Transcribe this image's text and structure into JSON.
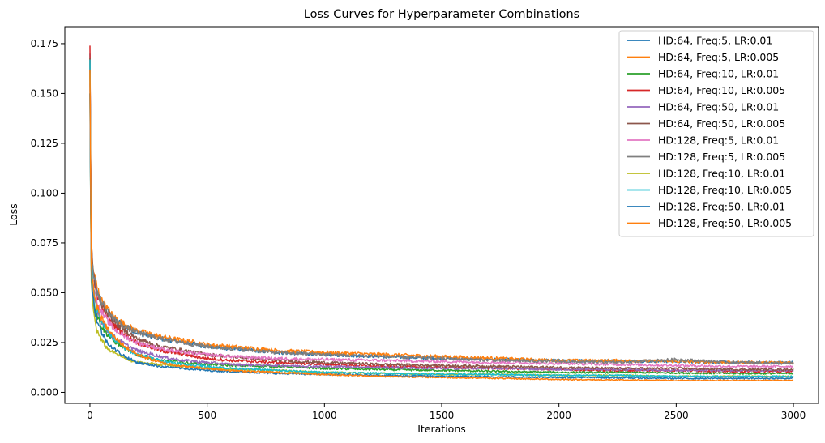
{
  "chart_data": {
    "type": "line",
    "title": "Loss Curves for Hyperparameter Combinations",
    "xlabel": "Iterations",
    "ylabel": "Loss",
    "xlim": [
      -107,
      3107
    ],
    "ylim": [
      -0.0055,
      0.1835
    ],
    "xticks": [
      0,
      500,
      1000,
      1500,
      2000,
      2500,
      3000
    ],
    "xtick_labels": [
      "0",
      "500",
      "1000",
      "1500",
      "2000",
      "2500",
      "3000"
    ],
    "yticks": [
      0.0,
      0.025,
      0.05,
      0.075,
      0.1,
      0.125,
      0.15,
      0.175
    ],
    "ytick_labels": [
      "0.000",
      "0.025",
      "0.050",
      "0.075",
      "0.100",
      "0.125",
      "0.150",
      "0.175"
    ],
    "grid": false,
    "legend_position": "top-right",
    "x": [
      0,
      5,
      10,
      20,
      30,
      50,
      75,
      100,
      150,
      200,
      300,
      400,
      500,
      600,
      800,
      1000,
      1250,
      1500,
      1750,
      2000,
      2250,
      2500,
      2750,
      3000
    ],
    "series": [
      {
        "name": "HD:64, Freq:5, LR:0.01",
        "color": "#1f77b4",
        "values": [
          0.17,
          0.075,
          0.062,
          0.055,
          0.05,
          0.045,
          0.04,
          0.037,
          0.033,
          0.03,
          0.027,
          0.025,
          0.023,
          0.022,
          0.02,
          0.019,
          0.018,
          0.017,
          0.0165,
          0.016,
          0.0158,
          0.0155,
          0.015,
          0.015
        ]
      },
      {
        "name": "HD:64, Freq:5, LR:0.005",
        "color": "#ff7f0e",
        "values": [
          0.168,
          0.08,
          0.065,
          0.058,
          0.053,
          0.046,
          0.042,
          0.038,
          0.034,
          0.031,
          0.028,
          0.026,
          0.024,
          0.023,
          0.021,
          0.02,
          0.019,
          0.018,
          0.017,
          0.016,
          0.016,
          0.0155,
          0.015,
          0.015
        ]
      },
      {
        "name": "HD:64, Freq:10, LR:0.01",
        "color": "#2ca02c",
        "values": [
          0.15,
          0.065,
          0.052,
          0.044,
          0.039,
          0.033,
          0.029,
          0.026,
          0.022,
          0.019,
          0.016,
          0.015,
          0.014,
          0.0135,
          0.013,
          0.012,
          0.0115,
          0.011,
          0.0105,
          0.01,
          0.01,
          0.0098,
          0.0095,
          0.0095
        ]
      },
      {
        "name": "HD:64, Freq:10, LR:0.005",
        "color": "#d62728",
        "values": [
          0.174,
          0.078,
          0.062,
          0.054,
          0.049,
          0.043,
          0.038,
          0.034,
          0.029,
          0.025,
          0.021,
          0.019,
          0.017,
          0.016,
          0.015,
          0.014,
          0.013,
          0.0125,
          0.012,
          0.0115,
          0.011,
          0.011,
          0.0105,
          0.0105
        ]
      },
      {
        "name": "HD:64, Freq:50, LR:0.01",
        "color": "#9467bd",
        "values": [
          0.155,
          0.066,
          0.054,
          0.047,
          0.042,
          0.036,
          0.031,
          0.028,
          0.024,
          0.021,
          0.018,
          0.016,
          0.015,
          0.014,
          0.0135,
          0.013,
          0.0125,
          0.012,
          0.012,
          0.0115,
          0.0115,
          0.011,
          0.011,
          0.011
        ]
      },
      {
        "name": "HD:64, Freq:50, LR:0.005",
        "color": "#8c564b",
        "values": [
          0.168,
          0.08,
          0.064,
          0.056,
          0.05,
          0.044,
          0.04,
          0.036,
          0.031,
          0.027,
          0.023,
          0.021,
          0.019,
          0.018,
          0.016,
          0.015,
          0.014,
          0.0135,
          0.013,
          0.0125,
          0.012,
          0.012,
          0.0115,
          0.0115
        ]
      },
      {
        "name": "HD:128, Freq:5, LR:0.01",
        "color": "#e377c2",
        "values": [
          0.16,
          0.072,
          0.058,
          0.051,
          0.046,
          0.04,
          0.036,
          0.032,
          0.028,
          0.025,
          0.022,
          0.02,
          0.019,
          0.018,
          0.017,
          0.0165,
          0.016,
          0.0155,
          0.015,
          0.0145,
          0.014,
          0.0135,
          0.013,
          0.013
        ]
      },
      {
        "name": "HD:128, Freq:5, LR:0.005",
        "color": "#7f7f7f",
        "values": [
          0.165,
          0.078,
          0.064,
          0.056,
          0.051,
          0.045,
          0.041,
          0.037,
          0.033,
          0.03,
          0.027,
          0.025,
          0.023,
          0.022,
          0.02,
          0.019,
          0.018,
          0.017,
          0.016,
          0.0155,
          0.015,
          0.0165,
          0.015,
          0.0145
        ]
      },
      {
        "name": "HD:128, Freq:10, LR:0.01",
        "color": "#bcbd22",
        "values": [
          0.16,
          0.06,
          0.046,
          0.037,
          0.031,
          0.026,
          0.022,
          0.02,
          0.017,
          0.015,
          0.014,
          0.013,
          0.012,
          0.0115,
          0.011,
          0.01,
          0.0095,
          0.009,
          0.009,
          0.0085,
          0.0085,
          0.008,
          0.008,
          0.008
        ]
      },
      {
        "name": "HD:128, Freq:10, LR:0.005",
        "color": "#17becf",
        "values": [
          0.167,
          0.07,
          0.056,
          0.048,
          0.042,
          0.036,
          0.031,
          0.027,
          0.022,
          0.019,
          0.016,
          0.014,
          0.013,
          0.012,
          0.011,
          0.01,
          0.0095,
          0.009,
          0.009,
          0.0085,
          0.0085,
          0.008,
          0.008,
          0.008
        ]
      },
      {
        "name": "HD:128, Freq:50, LR:0.01",
        "color": "#1f77b4",
        "values": [
          0.15,
          0.064,
          0.05,
          0.042,
          0.036,
          0.03,
          0.025,
          0.022,
          0.018,
          0.015,
          0.013,
          0.012,
          0.011,
          0.0105,
          0.0095,
          0.009,
          0.0085,
          0.008,
          0.0078,
          0.0075,
          0.0073,
          0.007,
          0.007,
          0.007
        ]
      },
      {
        "name": "HD:128, Freq:50, LR:0.005",
        "color": "#ff7f0e",
        "values": [
          0.162,
          0.07,
          0.056,
          0.048,
          0.043,
          0.037,
          0.032,
          0.028,
          0.023,
          0.019,
          0.015,
          0.013,
          0.012,
          0.011,
          0.01,
          0.009,
          0.008,
          0.0075,
          0.007,
          0.0065,
          0.0062,
          0.006,
          0.006,
          0.006
        ]
      }
    ]
  }
}
